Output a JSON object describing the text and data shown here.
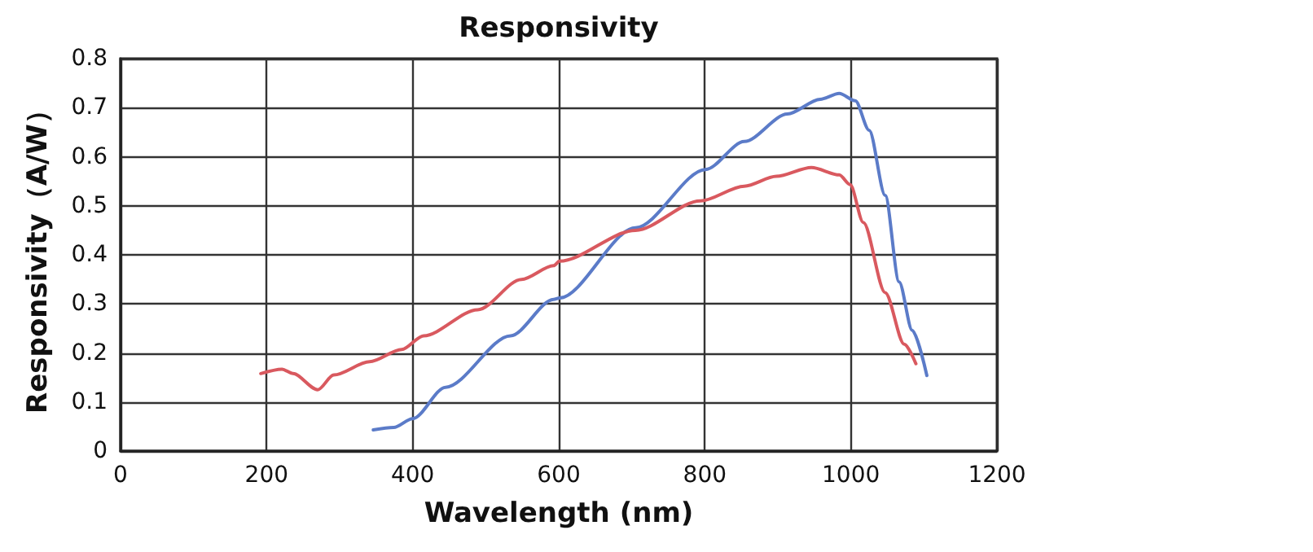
{
  "chart_data": {
    "type": "line",
    "title": "Responsivity",
    "xlabel": "Wavelength (nm)",
    "ylabel": "Responsivity（A/W）",
    "xlim": [
      0,
      1200
    ],
    "xticks": [
      0,
      200,
      400,
      600,
      800,
      1000,
      1200
    ],
    "ylim": [
      0,
      0.8
    ],
    "yticks": [
      0,
      0.1,
      0.2,
      0.3,
      0.4,
      0.5,
      0.6,
      0.7,
      0.8
    ],
    "grid": true,
    "marker": "none",
    "line_style": "solid",
    "series": [
      {
        "color": "#5b7bc8",
        "x": [
          346,
          374,
          400,
          445,
          534,
          593,
          601,
          705,
          801,
          854,
          913,
          958,
          984,
          1006,
          1025,
          1047,
          1066,
          1084,
          1104
        ],
        "values": [
          0.043,
          0.048,
          0.066,
          0.13,
          0.235,
          0.309,
          0.312,
          0.455,
          0.574,
          0.631,
          0.687,
          0.717,
          0.729,
          0.714,
          0.654,
          0.521,
          0.345,
          0.246,
          0.154
        ]
      },
      {
        "color": "#d9595f",
        "x": [
          192,
          221,
          236,
          270,
          292,
          341,
          385,
          415,
          489,
          549,
          593,
          601,
          705,
          794,
          854,
          898,
          946,
          984,
          999,
          1017,
          1047,
          1073,
          1089
        ],
        "values": [
          0.158,
          0.167,
          0.158,
          0.125,
          0.155,
          0.182,
          0.207,
          0.235,
          0.288,
          0.35,
          0.378,
          0.387,
          0.45,
          0.51,
          0.54,
          0.56,
          0.578,
          0.563,
          0.543,
          0.466,
          0.323,
          0.218,
          0.178
        ]
      }
    ]
  }
}
